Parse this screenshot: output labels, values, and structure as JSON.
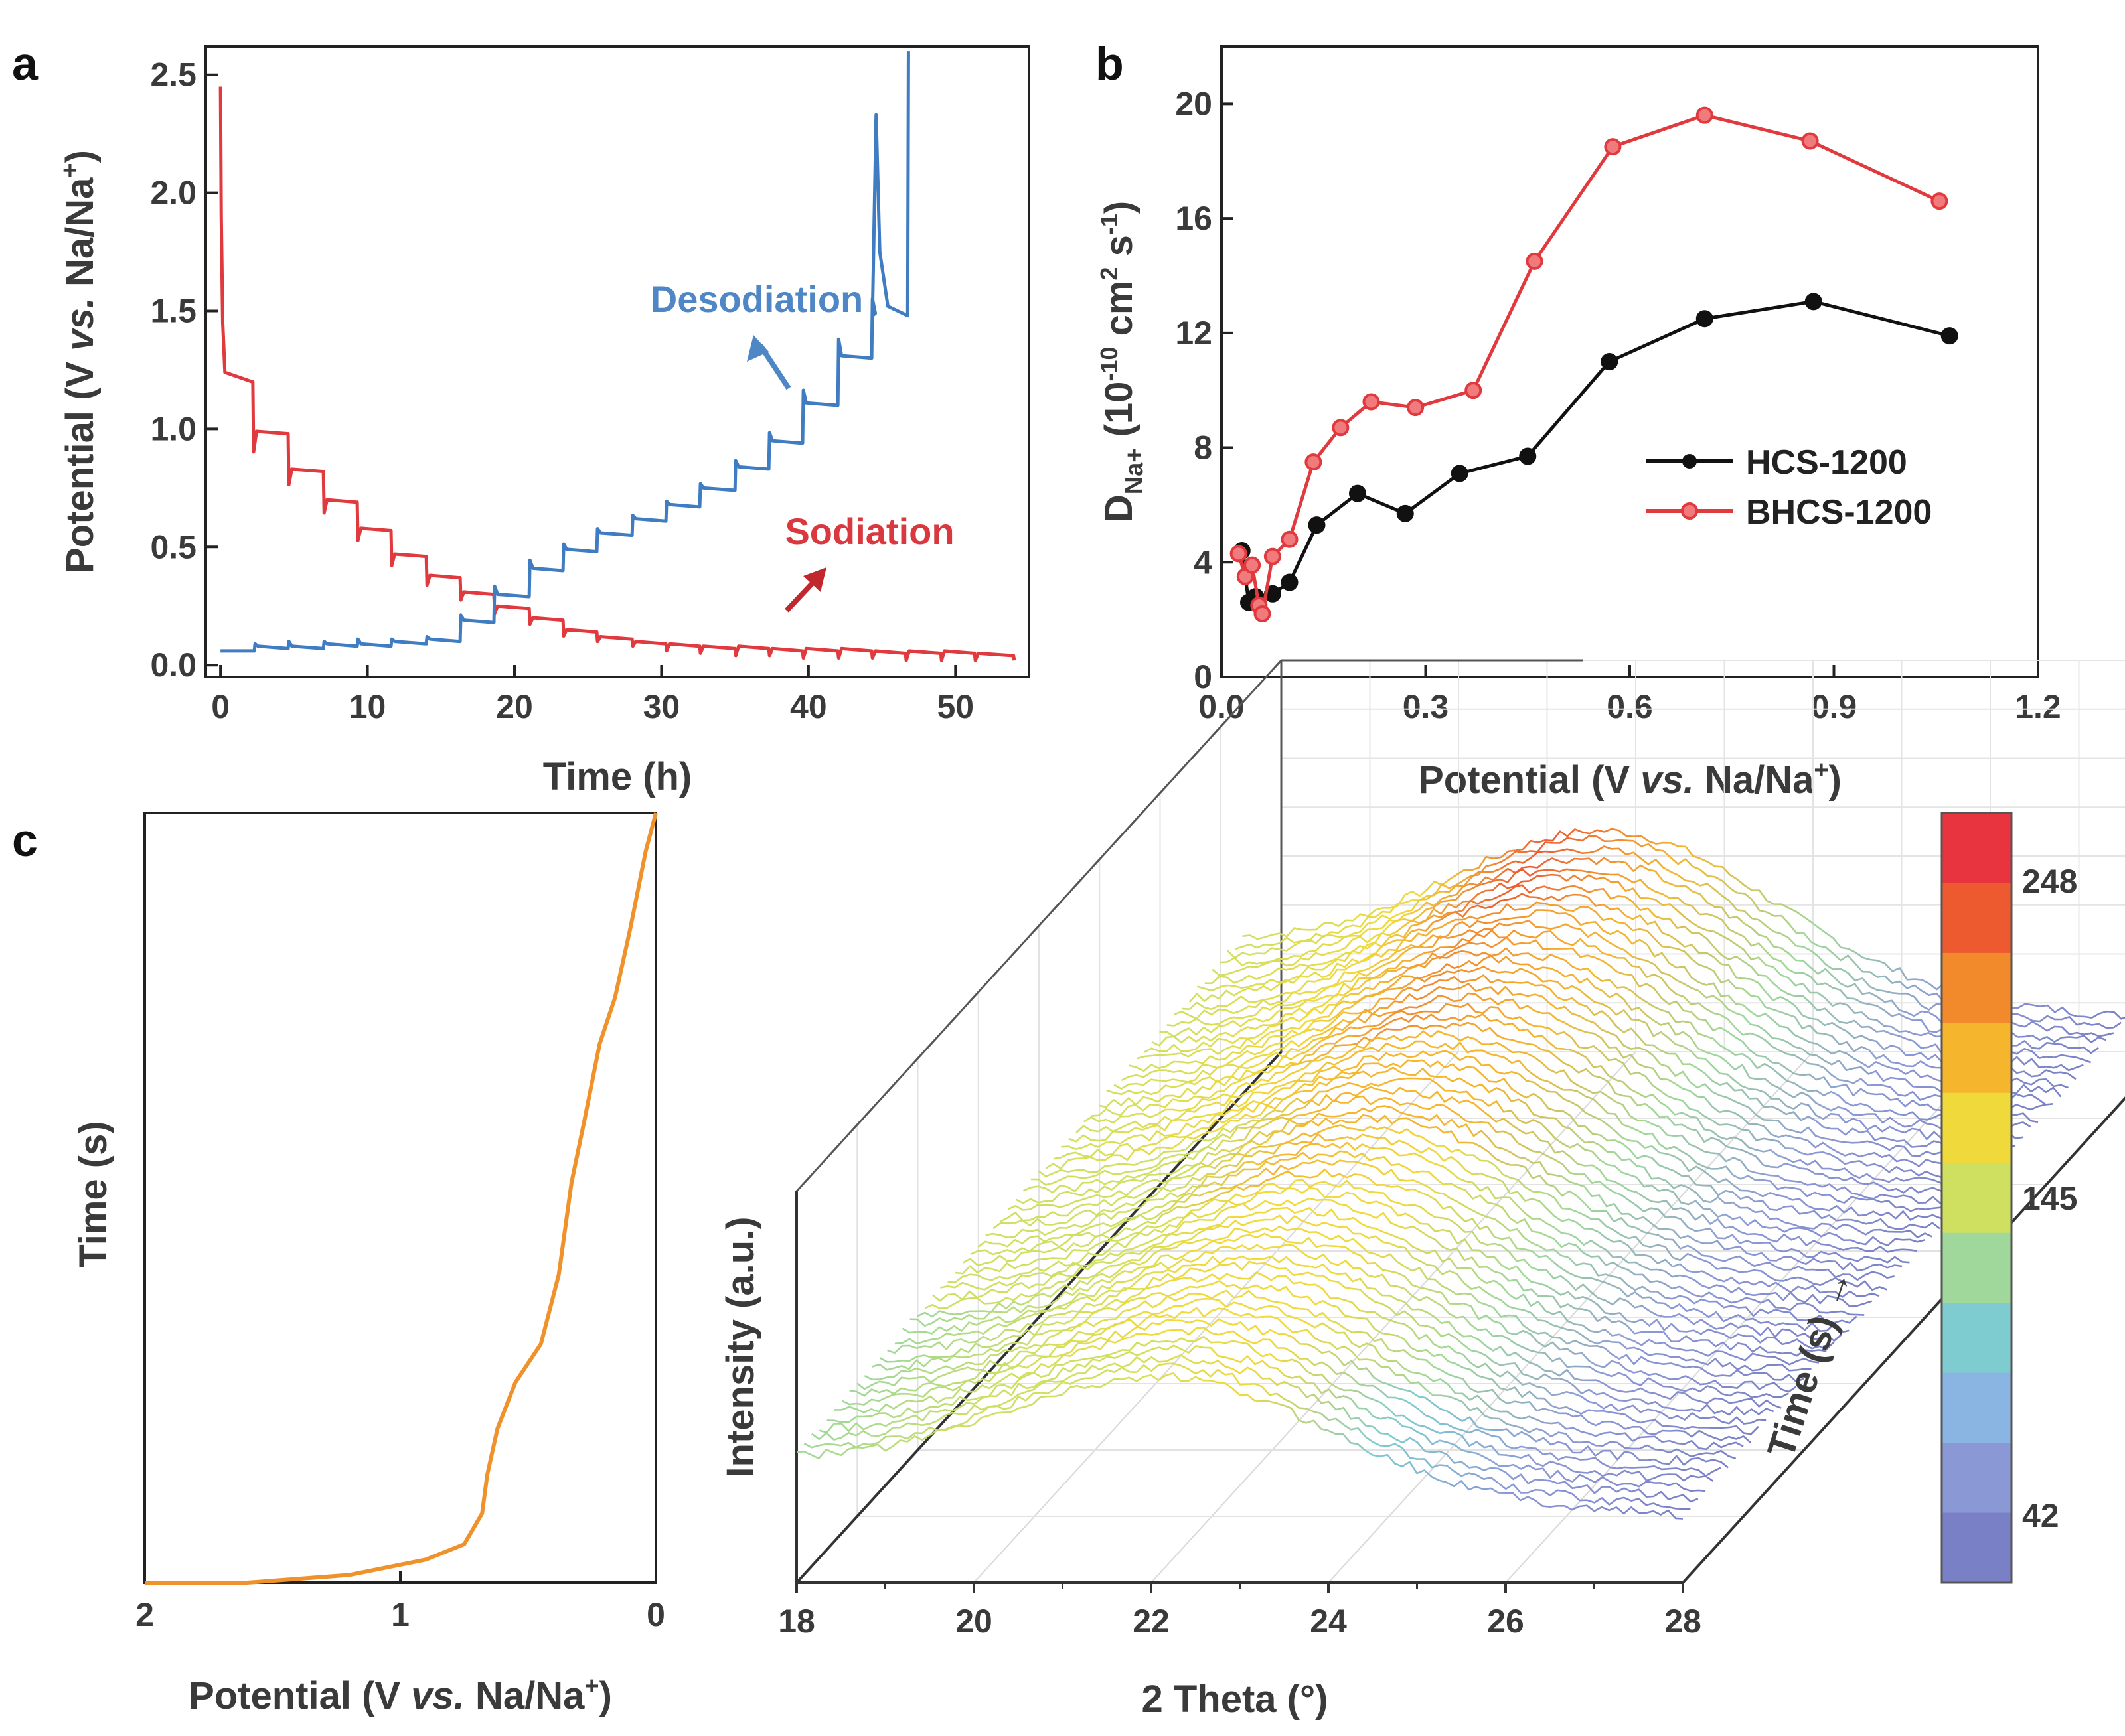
{
  "chart_data": [
    {
      "panel": "a",
      "type": "line",
      "xlabel": "Time (h)",
      "ylabel": "Potential (V vs. Na/Na+)",
      "xlim": [
        -1,
        55
      ],
      "ylim": [
        -0.05,
        2.62
      ],
      "xticks": [
        0,
        10,
        20,
        30,
        40,
        50
      ],
      "yticks": [
        0.0,
        0.5,
        1.0,
        1.5,
        2.0,
        2.5
      ],
      "xtick_labels": [
        "0",
        "10",
        "20",
        "30",
        "40",
        "50"
      ],
      "ytick_labels": [
        "0.0",
        "0.5",
        "1.0",
        "1.5",
        "2.0",
        "2.5"
      ],
      "annotations": [
        {
          "text": "Desodiation",
          "color": "#4f86c6"
        },
        {
          "text": "Sodiation",
          "color": "#d9383f"
        }
      ],
      "series": [
        {
          "name": "Sodiation",
          "color": "#e0393e",
          "pulse_times_h": [
            2.2,
            4.6,
            7.0,
            9.3,
            11.6,
            14.0,
            16.3,
            18.6,
            21.0,
            23.3,
            25.6,
            28.0,
            30.3,
            32.6,
            35.0,
            37.3,
            39.6,
            42.0,
            44.3,
            46.6,
            49.0,
            51.3
          ],
          "relax_potentials_v": [
            1.2,
            0.98,
            0.82,
            0.69,
            0.57,
            0.46,
            0.37,
            0.3,
            0.24,
            0.19,
            0.14,
            0.11,
            0.09,
            0.08,
            0.07,
            0.07,
            0.06,
            0.06,
            0.06,
            0.05,
            0.05,
            0.05,
            0.04
          ],
          "start": {
            "t": 0,
            "v": 2.45
          },
          "end": {
            "t": 54,
            "v": 0.02
          }
        },
        {
          "name": "Desodiation",
          "color": "#3f7cc1",
          "pulse_times_h": [
            2.3,
            4.6,
            7.0,
            9.3,
            11.6,
            14.0,
            16.3,
            18.6,
            21.0,
            23.3,
            25.6,
            28.0,
            30.3,
            32.6,
            35.0,
            37.3,
            39.6,
            42.0,
            44.3
          ],
          "relax_potentials_v": [
            0.06,
            0.07,
            0.07,
            0.08,
            0.08,
            0.09,
            0.1,
            0.18,
            0.29,
            0.4,
            0.48,
            0.55,
            0.61,
            0.67,
            0.74,
            0.83,
            0.94,
            1.1,
            1.3,
            1.48
          ],
          "peaks": [
            {
              "t": 44.6,
              "v": 2.33
            },
            {
              "t": 46.8,
              "v": 2.6
            }
          ],
          "end": {
            "t": 46.8,
            "v": 1.48
          }
        }
      ]
    },
    {
      "panel": "b",
      "type": "line",
      "xlabel": "Potential (V vs. Na/Na+)",
      "ylabel": "D_Na+ (10^-10 cm2 s-1)",
      "xlim": [
        0.0,
        1.2
      ],
      "ylim": [
        0,
        22
      ],
      "xticks": [
        0.0,
        0.3,
        0.6,
        0.9,
        1.2
      ],
      "yticks": [
        0,
        4,
        8,
        12,
        16,
        20
      ],
      "xtick_labels": [
        "0.0",
        "0.3",
        "0.6",
        "0.9",
        "1.2"
      ],
      "ytick_labels": [
        "0",
        "4",
        "8",
        "12",
        "16",
        "20"
      ],
      "legend_position": "center-right",
      "series": [
        {
          "name": "HCS-1200",
          "color": "#111111",
          "x": [
            0.03,
            0.04,
            0.05,
            0.075,
            0.1,
            0.14,
            0.2,
            0.27,
            0.35,
            0.45,
            0.57,
            0.71,
            0.87,
            1.07
          ],
          "y": [
            4.4,
            2.6,
            2.8,
            2.9,
            3.3,
            5.3,
            6.4,
            5.7,
            7.1,
            7.7,
            11.0,
            12.5,
            13.1,
            11.9
          ]
        },
        {
          "name": "BHCS-1200",
          "color": "#e0393e",
          "x": [
            0.025,
            0.035,
            0.045,
            0.055,
            0.06,
            0.075,
            0.1,
            0.135,
            0.175,
            0.22,
            0.285,
            0.37,
            0.46,
            0.575,
            0.71,
            0.865,
            1.055
          ],
          "y": [
            4.3,
            3.5,
            3.9,
            2.5,
            2.2,
            4.2,
            4.8,
            7.5,
            8.7,
            9.6,
            9.4,
            10.0,
            14.5,
            18.5,
            19.6,
            18.7,
            16.6
          ]
        }
      ]
    },
    {
      "panel": "c-left",
      "type": "line",
      "xlabel": "Potential (V vs. Na/Na+)",
      "ylabel": "Time (s)",
      "xlim": [
        2,
        0
      ],
      "xticks": [
        2,
        1,
        0
      ],
      "xtick_labels": [
        "2",
        "1",
        "0"
      ],
      "series": [
        {
          "name": "potential-time",
          "color": "#f0922b",
          "x": [
            2.0,
            1.6,
            1.2,
            0.9,
            0.75,
            0.68,
            0.66,
            0.62,
            0.55,
            0.45,
            0.38,
            0.33,
            0.28,
            0.22,
            0.16,
            0.1,
            0.04,
            0.0
          ],
          "y_fraction_of_time": [
            0.0,
            0.0,
            0.01,
            0.03,
            0.05,
            0.09,
            0.14,
            0.2,
            0.26,
            0.31,
            0.4,
            0.52,
            0.6,
            0.7,
            0.76,
            0.85,
            0.95,
            1.0
          ]
        }
      ]
    },
    {
      "panel": "c-right",
      "type": "waterfall",
      "xlabel": "2 Theta (°)",
      "ylabel": "Intensity (a.u.)",
      "zlabel": "Time (s) →",
      "xlim": [
        18,
        28
      ],
      "xticks": [
        18,
        20,
        22,
        24,
        26,
        28
      ],
      "xtick_labels": [
        "18",
        "20",
        "22",
        "24",
        "26",
        "28"
      ],
      "peak_position_deg": 22.2,
      "n_traces": 60,
      "colorbar": {
        "labels": [
          "248",
          "145",
          "42"
        ],
        "values": [
          248,
          145,
          42
        ],
        "min": 20,
        "max": 270,
        "colors": [
          "#e8343f",
          "#ee5a30",
          "#f28a2c",
          "#f5b52d",
          "#f0d93a",
          "#cfe060",
          "#9fd89a",
          "#7ecbd0",
          "#8ab5e2",
          "#8b98d6",
          "#7a80c6"
        ]
      }
    }
  ],
  "labels": {
    "a": "a",
    "b": "b",
    "c": "c"
  },
  "panel_a": {
    "ylabel_main": "Potential (V ",
    "ylabel_italic": "vs.",
    "ylabel_tail": " Na/Na",
    "ylabel_sup": "+",
    "ylabel_end": ")",
    "xlabel": "Time (h)",
    "desodiation": "Desodiation",
    "sodiation": "Sodiation"
  },
  "panel_b": {
    "ylabel_d": "D",
    "ylabel_sub": "Na+",
    "ylabel_mid": " (10",
    "ylabel_exp": "-10",
    "ylabel_cm": " cm",
    "ylabel_cmexp": "2",
    "ylabel_s": " s",
    "ylabel_sexp": "-1",
    "ylabel_end": ")",
    "xlabel_main": "Potential (V ",
    "xlabel_italic": "vs.",
    "xlabel_tail": " Na/Na",
    "xlabel_sup": "+",
    "xlabel_end": ")",
    "legend": [
      "HCS-1200",
      "BHCS-1200"
    ]
  },
  "panel_c": {
    "left_ylabel": "Time (s)",
    "left_xlabel_main": "Potential (V ",
    "left_xlabel_italic": "vs.",
    "left_xlabel_tail": " Na/Na",
    "left_xlabel_sup": "+",
    "left_xlabel_end": ")",
    "right_xlabel": "2 Theta (°)",
    "right_ylabel": "Intensity (a.u.)",
    "right_zlabel": "Time (s) →",
    "cb_labels": [
      "248",
      "145",
      "42"
    ]
  }
}
